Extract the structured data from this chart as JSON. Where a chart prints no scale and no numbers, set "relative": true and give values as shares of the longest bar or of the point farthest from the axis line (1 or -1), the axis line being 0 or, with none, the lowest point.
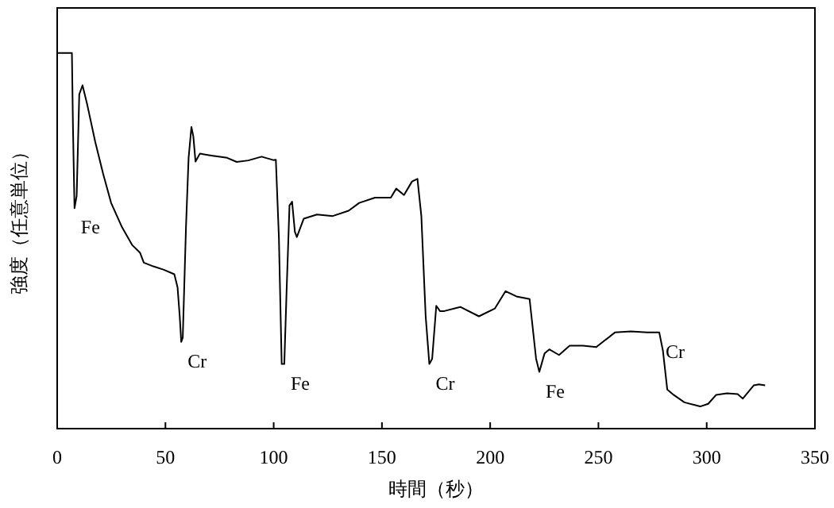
{
  "chart_data": {
    "type": "line",
    "xlabel": "時間（秒）",
    "ylabel": "強度（任意単位）",
    "relative": true,
    "tick_labels": "x",
    "grid": false,
    "marker": "none",
    "line_style": "solid",
    "xlim": [
      0,
      350
    ],
    "xticks": [
      0,
      50,
      100,
      150,
      200,
      250,
      300,
      350
    ],
    "series": [
      {
        "color": "#000000",
        "x": [
          0,
          6.8,
          7.3,
          8.0,
          9.0,
          10.2,
          11.7,
          13.9,
          17.6,
          21.2,
          24.9,
          29.8,
          34.6,
          38.3,
          40,
          44.4,
          49.3,
          54.1,
          55.6,
          56.6,
          57.3,
          58,
          59.5,
          60.7,
          62,
          62.9,
          63.9,
          65.9,
          71.2,
          78.5,
          82.9,
          88.3,
          94.4,
          99.8,
          101,
          102.4,
          103.7,
          104.9,
          105.9,
          107.3,
          108.5,
          109.8,
          110.7,
          113.9,
          120,
          127.3,
          134.6,
          139.5,
          146.8,
          154.1,
          156.6,
          160.2,
          163.9,
          166.4,
          168.2,
          170.2,
          171.9,
          173.2,
          175.1,
          176.8,
          178.8,
          186.2,
          194.8,
          202.2,
          207.1,
          212.1,
          218.2,
          221.2,
          222.7,
          225.1,
          227.3,
          231.8,
          236.7,
          242.9,
          249,
          257.6,
          265,
          272.4,
          278.1,
          279.8,
          281.8,
          284.7,
          289.7,
          297,
          300.7,
          304.4,
          309.4,
          314.3,
          316.7,
          321.7,
          324.1,
          327
        ],
        "values": [
          1,
          1,
          0.8,
          0.587,
          0.62,
          0.89,
          0.914,
          0.862,
          0.763,
          0.679,
          0.601,
          0.538,
          0.489,
          0.468,
          0.442,
          0.432,
          0.423,
          0.411,
          0.376,
          0.299,
          0.231,
          0.242,
          0.538,
          0.721,
          0.803,
          0.777,
          0.711,
          0.732,
          0.727,
          0.721,
          0.71,
          0.714,
          0.724,
          0.715,
          0.716,
          0.51,
          0.172,
          0.172,
          0.355,
          0.594,
          0.604,
          0.524,
          0.51,
          0.559,
          0.57,
          0.566,
          0.58,
          0.601,
          0.615,
          0.615,
          0.639,
          0.622,
          0.658,
          0.665,
          0.566,
          0.299,
          0.172,
          0.186,
          0.327,
          0.313,
          0.313,
          0.324,
          0.299,
          0.32,
          0.366,
          0.352,
          0.345,
          0.186,
          0.151,
          0.2,
          0.211,
          0.196,
          0.221,
          0.221,
          0.217,
          0.256,
          0.259,
          0.256,
          0.256,
          0.207,
          0.104,
          0.09,
          0.07,
          0.059,
          0.066,
          0.09,
          0.094,
          0.092,
          0.08,
          0.115,
          0.118,
          0.115
        ]
      }
    ],
    "annotations": [
      {
        "text": "Fe",
        "x": 8.0,
        "y": 0.587
      },
      {
        "text": "Cr",
        "x": 57.3,
        "y": 0.231
      },
      {
        "text": "Fe",
        "x": 104.9,
        "y": 0.172
      },
      {
        "text": "Cr",
        "x": 171.9,
        "y": 0.172
      },
      {
        "text": "Fe",
        "x": 222.7,
        "y": 0.151
      },
      {
        "text": "Cr",
        "x": 278.1,
        "y": 0.256
      }
    ]
  }
}
